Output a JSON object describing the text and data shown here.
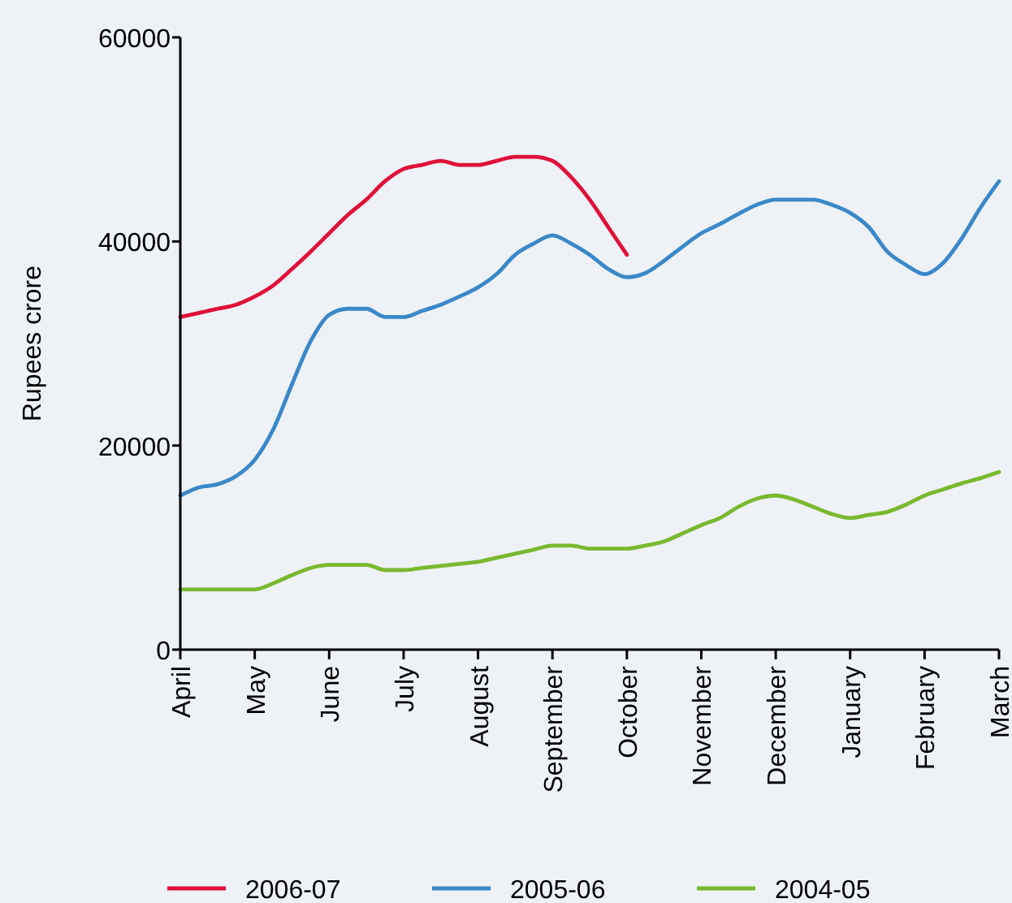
{
  "chart_data": {
    "type": "line",
    "ylabel": "Rupees crore",
    "categories": [
      "April",
      null,
      null,
      null,
      "May",
      null,
      null,
      null,
      "June",
      null,
      null,
      null,
      "July",
      null,
      null,
      null,
      "August",
      null,
      null,
      null,
      "September",
      null,
      null,
      null,
      "October",
      null,
      null,
      null,
      "November",
      null,
      null,
      null,
      "December",
      null,
      null,
      null,
      "January",
      null,
      null,
      null,
      "February",
      null,
      null,
      null,
      "March"
    ],
    "ylim": [
      0,
      60000
    ],
    "yticks": [
      0,
      20000,
      40000,
      60000
    ],
    "grid": false,
    "legend": "bottom",
    "marker": "none",
    "line_style": "solid",
    "series": [
      {
        "name": "2006-07",
        "color": "#e0103a",
        "values": [
          32600,
          33000,
          33400,
          33800,
          34600,
          35700,
          37300,
          39000,
          40800,
          42600,
          44100,
          45900,
          47100,
          47500,
          47900,
          47500,
          47500,
          47900,
          48300,
          48300,
          47900,
          46300,
          44100,
          41400,
          38700,
          null,
          null,
          null,
          null,
          null,
          null,
          null,
          null,
          null,
          null,
          null,
          null,
          null,
          null,
          null,
          null,
          null,
          null,
          null,
          null
        ]
      },
      {
        "name": "2005-06",
        "color": "#3a88c8",
        "values": [
          15100,
          15900,
          16200,
          17000,
          18600,
          21600,
          26000,
          30200,
          32800,
          33400,
          33400,
          32600,
          32600,
          33200,
          33800,
          34600,
          35500,
          36800,
          38700,
          39800,
          40600,
          39800,
          38700,
          37300,
          36500,
          36900,
          38100,
          39500,
          40800,
          41700,
          42700,
          43600,
          44100,
          44100,
          44100,
          43600,
          42800,
          41400,
          39000,
          37700,
          36800,
          37900,
          40300,
          43300,
          45900
        ]
      },
      {
        "name": "2004-05",
        "color": "#7ab82e",
        "values": [
          5900,
          5900,
          5900,
          5900,
          5900,
          6500,
          7300,
          8000,
          8300,
          8300,
          8300,
          7800,
          7800,
          8000,
          8200,
          8400,
          8600,
          9000,
          9400,
          9800,
          10200,
          10200,
          9900,
          9900,
          9900,
          10200,
          10600,
          11400,
          12200,
          12900,
          14000,
          14800,
          15100,
          14700,
          14000,
          13300,
          12900,
          13200,
          13500,
          14200,
          15100,
          15700,
          16300,
          16800,
          17400
        ]
      }
    ]
  }
}
